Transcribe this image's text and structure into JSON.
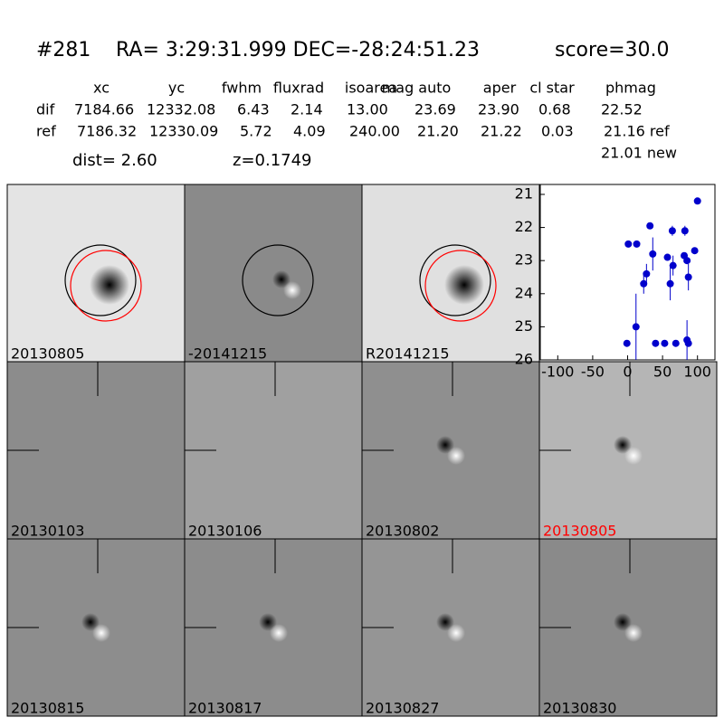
{
  "header": {
    "id": "#281",
    "coords": "RA= 3:29:31.999 DEC=-28:24:51.23",
    "score": "score=30.0"
  },
  "table": {
    "columns": [
      "xc",
      "yc",
      "fwhm",
      "fluxrad",
      "isoarea",
      "mag auto",
      "aper",
      "cl star",
      "phmag"
    ],
    "rows": [
      {
        "label": "dif",
        "cells": [
          "7184.66",
          "12332.08",
          "6.43",
          "2.14",
          "13.00",
          "23.69",
          "23.90",
          "0.68",
          "22.52"
        ]
      },
      {
        "label": "ref",
        "cells": [
          "7186.32",
          "12330.09",
          "5.72",
          "4.09",
          "240.00",
          "21.20",
          "21.22",
          "0.03",
          "21.16 ref"
        ]
      }
    ],
    "extra": "21.01 new"
  },
  "dist": "dist=  2.60",
  "redshift": "z=0.1749",
  "stamps": [
    {
      "label": "20130805",
      "color": "#000000"
    },
    {
      "label": "-20141215",
      "color": "#000000"
    },
    {
      "label": "R20141215",
      "color": "#000000"
    },
    {
      "label": "20130103",
      "color": "#000000"
    },
    {
      "label": "20130106",
      "color": "#000000"
    },
    {
      "label": "20130802",
      "color": "#000000"
    },
    {
      "label": "20130805",
      "color": "#ff0000"
    },
    {
      "label": "20130815",
      "color": "#000000"
    },
    {
      "label": "20130817",
      "color": "#000000"
    },
    {
      "label": "20130827",
      "color": "#000000"
    },
    {
      "label": "20130830",
      "color": "#000000"
    }
  ],
  "chart_data": {
    "type": "scatter",
    "series": [
      {
        "color": "#0000cc",
        "x": [
          -1,
          1,
          13,
          12,
          23,
          27,
          32,
          36,
          40,
          57,
          53,
          61,
          64,
          65,
          69,
          82,
          81,
          85,
          87,
          85,
          87,
          96,
          100
        ],
        "values": [
          25.5,
          22.5,
          22.5,
          25.0,
          23.7,
          23.4,
          21.95,
          22.8,
          25.5,
          22.9,
          25.5,
          23.7,
          22.1,
          23.15,
          25.5,
          22.1,
          22.85,
          23.0,
          23.5,
          25.4,
          25.5,
          22.7,
          21.2
        ],
        "errors": [
          0.1,
          0.1,
          0.1,
          1.0,
          0.3,
          0.3,
          0.1,
          0.5,
          0.1,
          0.1,
          0.1,
          0.5,
          0.15,
          0.3,
          0.1,
          0.15,
          0.1,
          0.1,
          0.4,
          0.6,
          0.1,
          0.1,
          0.05
        ]
      }
    ],
    "xlim": [
      -125,
      125
    ],
    "xticks": [
      -100,
      -50,
      0,
      50,
      100
    ],
    "ylim": [
      26,
      20.7
    ],
    "yticks": [
      21,
      22,
      23,
      24,
      25,
      26
    ]
  }
}
